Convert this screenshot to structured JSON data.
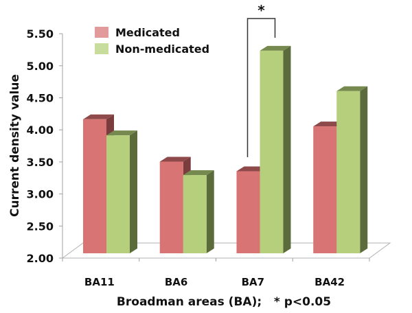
{
  "chart_data": {
    "type": "bar",
    "style": "3d-clustered-column",
    "title": "",
    "xlabel": "Broadman areas (BA);   * p<0.05",
    "ylabel": "Current density value",
    "categories": [
      "BA11",
      "BA6",
      "BA7",
      "BA42"
    ],
    "series": [
      {
        "name": "Medicated",
        "color": "#d97474",
        "values": [
          4.09,
          3.43,
          3.28,
          3.98
        ]
      },
      {
        "name": "Non-medicated",
        "color": "#b5cf7d",
        "values": [
          3.84,
          3.22,
          5.16,
          4.53
        ]
      }
    ],
    "ylim": [
      2.0,
      5.5
    ],
    "yticks": [
      "2.00",
      "2.50",
      "3.00",
      "3.50",
      "4.00",
      "4.50",
      "5.00",
      "5.50"
    ],
    "grid": false,
    "legend": {
      "placement": "top-left",
      "entries": [
        "Medicated",
        "Non-medicated"
      ]
    },
    "annotations": [
      {
        "type": "significance-bracket",
        "category": "BA7",
        "between": [
          "Medicated",
          "Non-medicated"
        ],
        "label": "*"
      }
    ]
  }
}
